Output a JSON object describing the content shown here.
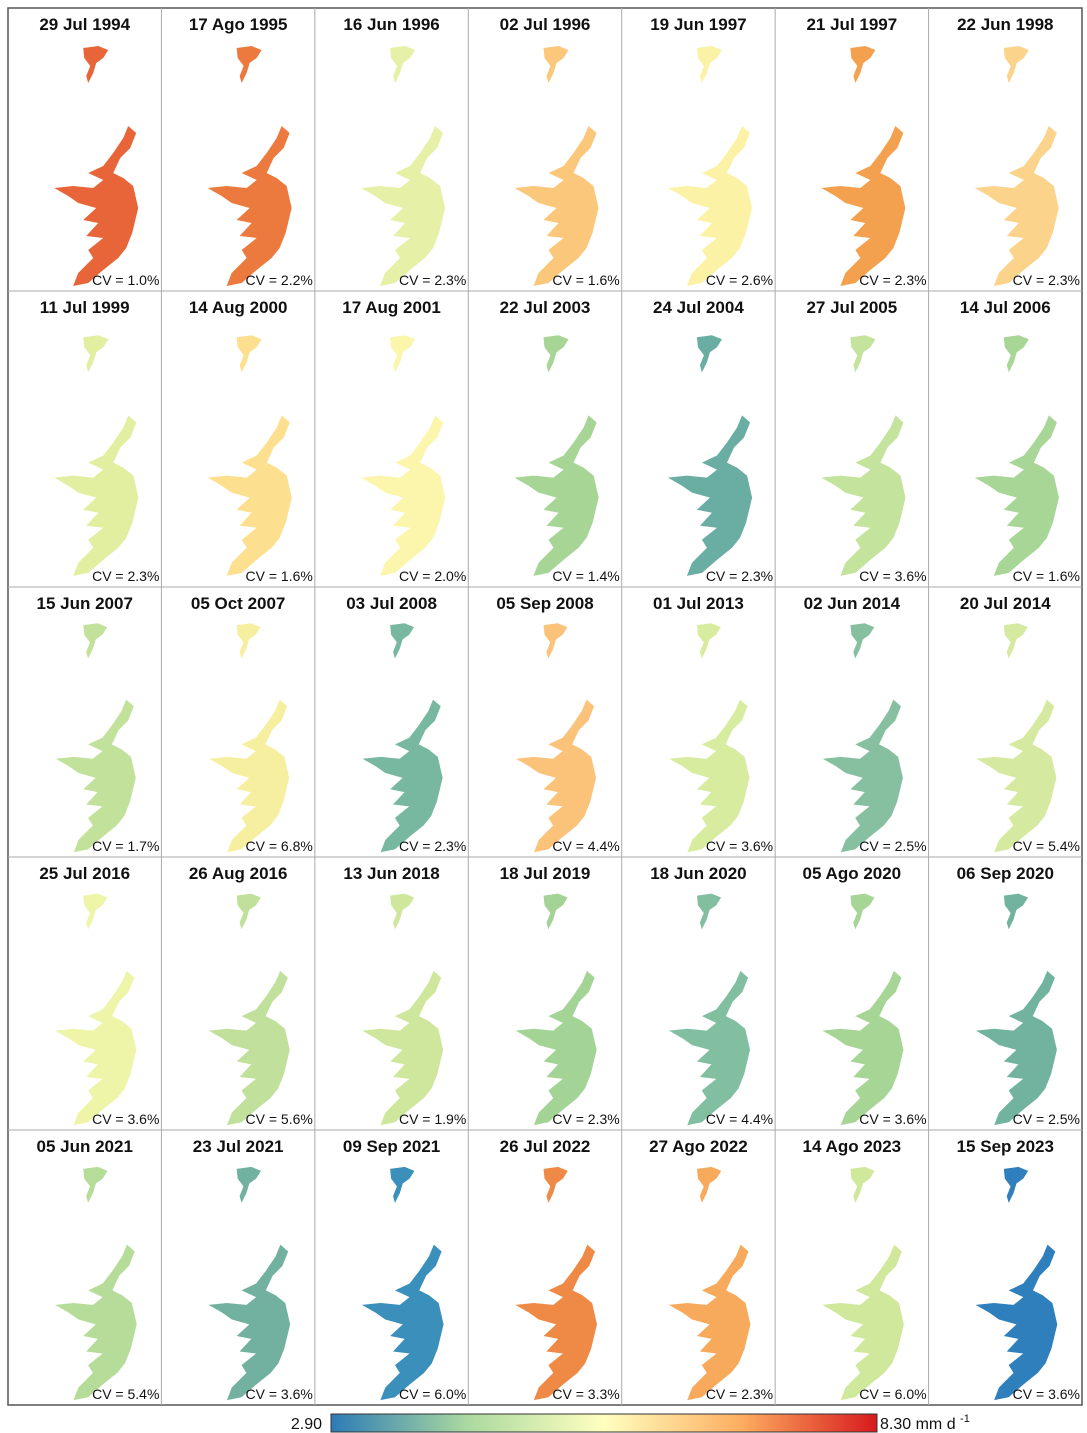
{
  "panels": [
    {
      "date": "29 Jul 1994",
      "cv": "CV = 1.0%",
      "color": "#e8653a"
    },
    {
      "date": "17 Ago 1995",
      "cv": "CV = 2.2%",
      "color": "#ec7a3e"
    },
    {
      "date": "16 Jun 1996",
      "cv": "CV = 2.3%",
      "color": "#e6f0a6"
    },
    {
      "date": "02 Jul 1996",
      "cv": "CV = 1.6%",
      "color": "#fbc77a"
    },
    {
      "date": "19 Jun 1997",
      "cv": "CV = 2.6%",
      "color": "#fbf2a6"
    },
    {
      "date": "21 Jul 1997",
      "cv": "CV = 2.3%",
      "color": "#f3a04f"
    },
    {
      "date": "22 Jun 1998",
      "cv": "CV = 2.3%",
      "color": "#fbd38b"
    },
    {
      "date": "11 Jul 1999",
      "cv": "CV = 2.3%",
      "color": "#e2efa0"
    },
    {
      "date": "14 Aug 2000",
      "cv": "CV = 1.6%",
      "color": "#fde08f"
    },
    {
      "date": "17 Aug 2001",
      "cv": "CV = 2.0%",
      "color": "#fcf6ad"
    },
    {
      "date": "22 Jul 2003",
      "cv": "CV = 1.4%",
      "color": "#a6d595"
    },
    {
      "date": "24 Jul 2004",
      "cv": "CV = 2.3%",
      "color": "#6aada2"
    },
    {
      "date": "27 Jul 2005",
      "cv": "CV = 3.6%",
      "color": "#c4e39c"
    },
    {
      "date": "14 Jul 2006",
      "cv": "CV = 1.6%",
      "color": "#a8d697"
    },
    {
      "date": "15 Jun 2007",
      "cv": "CV = 1.7%",
      "color": "#c2e29b"
    },
    {
      "date": "05 Oct 2007",
      "cv": "CV = 6.8%",
      "color": "#f7efa0"
    },
    {
      "date": "03 Jul 2008",
      "cv": "CV = 2.3%",
      "color": "#78b8a0"
    },
    {
      "date": "05 Sep 2008",
      "cv": "CV = 4.4%",
      "color": "#fbc27a"
    },
    {
      "date": "01 Jul 2013",
      "cv": "CV = 3.6%",
      "color": "#d8eca0"
    },
    {
      "date": "02 Jun 2014",
      "cv": "CV = 2.5%",
      "color": "#86c0a0"
    },
    {
      "date": "20 Jul 2014",
      "cv": "CV = 5.4%",
      "color": "#d5eaa0"
    },
    {
      "date": "25 Jul 2016",
      "cv": "CV = 3.6%",
      "color": "#eef5a8"
    },
    {
      "date": "26 Aug 2016",
      "cv": "CV = 5.6%",
      "color": "#c0e09b"
    },
    {
      "date": "13 Jun 2018",
      "cv": "CV = 1.9%",
      "color": "#cfe79d"
    },
    {
      "date": "18 Jul 2019",
      "cv": "CV = 2.3%",
      "color": "#a3d496"
    },
    {
      "date": "18 Jun 2020",
      "cv": "CV = 4.4%",
      "color": "#82bea0"
    },
    {
      "date": "05 Ago 2020",
      "cv": "CV = 3.6%",
      "color": "#a7d596"
    },
    {
      "date": "06 Sep 2020",
      "cv": "CV = 2.5%",
      "color": "#72b3a0"
    },
    {
      "date": "05 Jun 2021",
      "cv": "CV = 5.4%",
      "color": "#b5dc99"
    },
    {
      "date": "23 Jul 2021",
      "cv": "CV = 3.6%",
      "color": "#72b1a0"
    },
    {
      "date": "09 Sep 2021",
      "cv": "CV = 6.0%",
      "color": "#3b8fbb"
    },
    {
      "date": "26 Jul 2022",
      "cv": "CV = 3.3%",
      "color": "#ef8a46"
    },
    {
      "date": "27 Ago 2022",
      "cv": "CV = 2.3%",
      "color": "#f7aa5c"
    },
    {
      "date": "14 Ago 2023",
      "cv": "CV = 6.0%",
      "color": "#d0e89c"
    },
    {
      "date": "15 Sep 2023",
      "cv": "CV = 3.6%",
      "color": "#2e7fbb"
    }
  ],
  "colorbar": {
    "min": {
      "value": 2.9,
      "label": "2.90"
    },
    "max": {
      "value": 8.3,
      "label": "8.30"
    },
    "unit": "mm d",
    "unit_exponent": "-1",
    "colors": [
      "#2c7bb6",
      "#abd9a0",
      "#ffffbf",
      "#fdae61",
      "#d7191c"
    ]
  }
}
